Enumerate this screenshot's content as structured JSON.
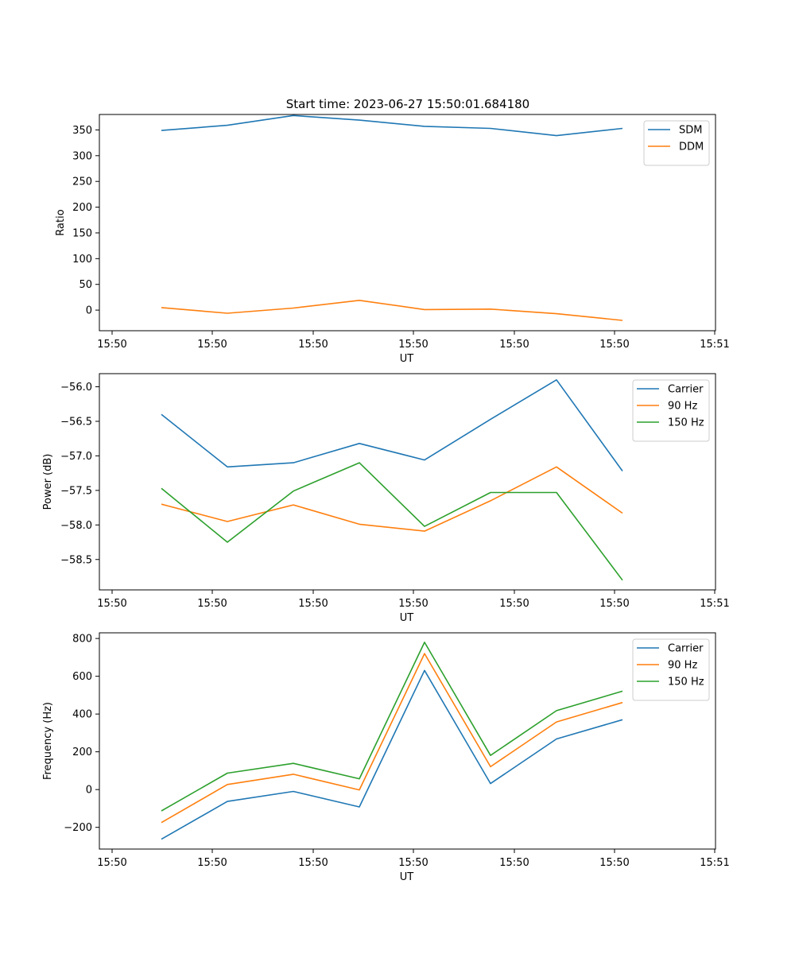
{
  "figure_title": "Start time: 2023-06-27 15:50:01.684180",
  "colors": {
    "blue": "#1f77b4",
    "orange": "#ff7f0e",
    "green": "#2ca02c"
  },
  "chart_data": [
    {
      "type": "line",
      "title": "Start time: 2023-06-27 15:50:01.684180",
      "xlabel": "UT",
      "ylabel": "Ratio",
      "x_tick_labels": [
        "15:50",
        "15:50",
        "15:50",
        "15:50",
        "15:50",
        "15:50",
        "15:51"
      ],
      "y_ticks": [
        0,
        50,
        100,
        150,
        200,
        250,
        300,
        350
      ],
      "ylim": [
        -40,
        380
      ],
      "legend_position": "upper right",
      "grid": false,
      "series": [
        {
          "name": "SDM",
          "color": "#1f77b4",
          "values": [
            349,
            359,
            378,
            369,
            357,
            353,
            339,
            353
          ]
        },
        {
          "name": "DDM",
          "color": "#ff7f0e",
          "values": [
            5,
            -6,
            4,
            19,
            1,
            2,
            -7,
            -20
          ]
        }
      ]
    },
    {
      "type": "line",
      "title": "",
      "xlabel": "UT",
      "ylabel": "Power (dB)",
      "x_tick_labels": [
        "15:50",
        "15:50",
        "15:50",
        "15:50",
        "15:50",
        "15:50",
        "15:51"
      ],
      "y_ticks": [
        -58.5,
        -58.0,
        -57.5,
        -57.0,
        -56.5,
        -56.0
      ],
      "y_tick_labels": [
        "−58.5",
        "−58.0",
        "−57.5",
        "−57.0",
        "−56.5",
        "−56.0"
      ],
      "ylim": [
        -58.94,
        -55.81
      ],
      "legend_position": "upper right",
      "grid": false,
      "series": [
        {
          "name": "Carrier",
          "color": "#1f77b4",
          "values": [
            -56.4,
            -57.16,
            -57.1,
            -56.82,
            -57.06,
            -56.47,
            -55.9,
            -57.22
          ]
        },
        {
          "name": "90 Hz",
          "color": "#ff7f0e",
          "values": [
            -57.7,
            -57.95,
            -57.71,
            -57.99,
            -58.09,
            -57.65,
            -57.16,
            -57.83
          ]
        },
        {
          "name": "150 Hz",
          "color": "#2ca02c",
          "values": [
            -57.47,
            -58.25,
            -57.51,
            -57.1,
            -58.02,
            -57.53,
            -57.53,
            -58.8
          ]
        }
      ]
    },
    {
      "type": "line",
      "title": "",
      "xlabel": "UT",
      "ylabel": "Frequency (Hz)",
      "x_tick_labels": [
        "15:50",
        "15:50",
        "15:50",
        "15:50",
        "15:50",
        "15:50",
        "15:51"
      ],
      "y_ticks": [
        -200,
        0,
        200,
        400,
        600,
        800
      ],
      "y_tick_labels": [
        "−200",
        "0",
        "200",
        "400",
        "600",
        "800"
      ],
      "ylim": [
        -315,
        830
      ],
      "legend_position": "upper right",
      "grid": false,
      "series": [
        {
          "name": "Carrier",
          "color": "#1f77b4",
          "values": [
            -263,
            -63,
            -10,
            -92,
            631,
            32,
            268,
            370
          ]
        },
        {
          "name": "90 Hz",
          "color": "#ff7f0e",
          "values": [
            -175,
            27,
            81,
            -2,
            720,
            121,
            358,
            461
          ]
        },
        {
          "name": "150 Hz",
          "color": "#2ca02c",
          "values": [
            -113,
            87,
            139,
            57,
            780,
            181,
            418,
            521
          ]
        }
      ]
    }
  ]
}
